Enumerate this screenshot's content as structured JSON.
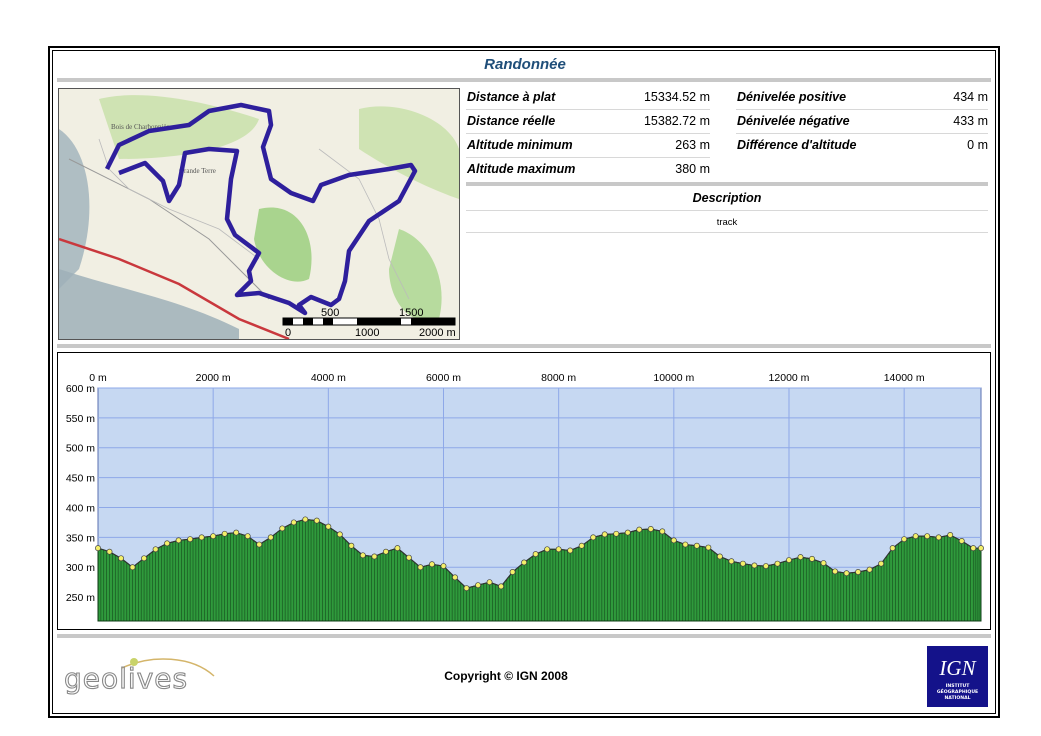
{
  "page": {
    "title": "Randonnée"
  },
  "stats": {
    "left": [
      {
        "label": "Distance à plat",
        "value": "15334.52 m"
      },
      {
        "label": "Distance réelle",
        "value": "15382.72 m"
      },
      {
        "label": "Altitude minimum",
        "value": "263 m"
      },
      {
        "label": "Altitude maximum",
        "value": "380 m"
      }
    ],
    "right": [
      {
        "label": "Dénivelée positive",
        "value": "434 m"
      },
      {
        "label": "Dénivelée négative",
        "value": "433 m"
      },
      {
        "label": "Différence d'altitude",
        "value": "0 m"
      }
    ]
  },
  "description": {
    "title": "Description",
    "text": "track"
  },
  "map": {
    "scale_top": [
      "500",
      "1500"
    ],
    "scale_bottom": [
      "0",
      "1000",
      "2000 m"
    ],
    "route_color": "#2e1f9c",
    "place_names": [
      "Bois de Charbonnières",
      "Grande Terre"
    ]
  },
  "footer": {
    "logo_text": "geolives",
    "copyright": "Copyright © IGN 2008",
    "ign_logo": {
      "letters": "IGN",
      "lines": [
        "INSTITUT",
        "GÉOGRAPHIQUE",
        "NATIONAL"
      ]
    }
  },
  "colors": {
    "title": "#1f4e79",
    "plot_background": "#c6d8f2",
    "grid": "#8ea8e8",
    "terrain_fill": "#2f9a3c",
    "point_fill": "#f4f06a"
  },
  "chart_data": {
    "type": "area",
    "title": "",
    "xlabel": "",
    "ylabel": "",
    "x_ticks": [
      "0 m",
      "2000 m",
      "4000 m",
      "6000 m",
      "8000 m",
      "10000 m",
      "12000 m",
      "14000 m"
    ],
    "y_ticks": [
      "600 m",
      "550 m",
      "500 m",
      "450 m",
      "400 m",
      "350 m",
      "300 m",
      "250 m"
    ],
    "xlim": [
      0,
      15334.52
    ],
    "ylim": [
      210,
      600
    ],
    "grid": true,
    "series": [
      {
        "x": [
          0,
          200,
          400,
          600,
          800,
          1000,
          1200,
          1400,
          1600,
          1800,
          2000,
          2200,
          2400,
          2600,
          2800,
          3000,
          3200,
          3400,
          3600,
          3800,
          4000,
          4200,
          4400,
          4600,
          4800,
          5000,
          5200,
          5400,
          5600,
          5800,
          6000,
          6200,
          6400,
          6600,
          6800,
          7000,
          7200,
          7400,
          7600,
          7800,
          8000,
          8200,
          8400,
          8600,
          8800,
          9000,
          9200,
          9400,
          9600,
          9800,
          10000,
          10200,
          10400,
          10600,
          10800,
          11000,
          11200,
          11400,
          11600,
          11800,
          12000,
          12200,
          12400,
          12600,
          12800,
          13000,
          13200,
          13400,
          13600,
          13800,
          14000,
          14200,
          14400,
          14600,
          14800,
          15000,
          15200,
          15334
        ],
        "y": [
          332,
          326,
          315,
          300,
          315,
          330,
          340,
          345,
          347,
          350,
          352,
          356,
          358,
          352,
          338,
          350,
          365,
          375,
          380,
          378,
          368,
          355,
          336,
          320,
          318,
          326,
          332,
          316,
          300,
          305,
          302,
          283,
          265,
          270,
          275,
          268,
          292,
          308,
          322,
          330,
          330,
          328,
          336,
          350,
          355,
          356,
          358,
          363,
          364,
          360,
          345,
          338,
          336,
          333,
          318,
          310,
          306,
          303,
          302,
          306,
          312,
          317,
          314,
          307,
          293,
          290,
          292,
          296,
          306,
          332,
          347,
          352,
          352,
          350,
          354,
          344,
          332,
          332
        ]
      }
    ]
  }
}
